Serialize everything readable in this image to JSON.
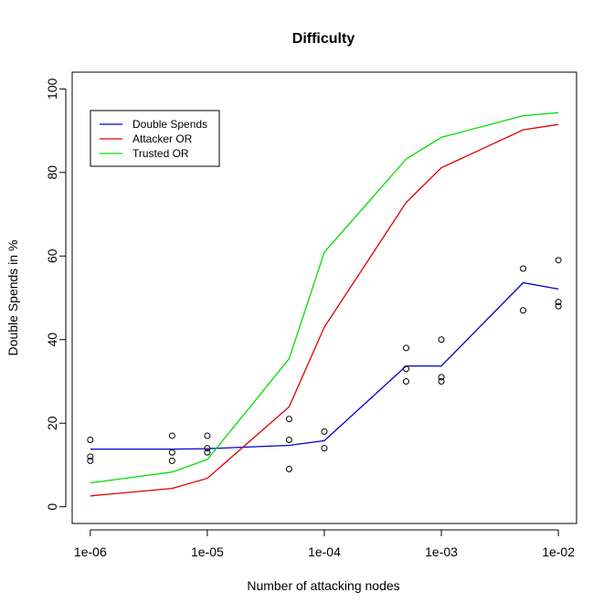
{
  "chart_data": {
    "type": "line",
    "title": "Difficulty",
    "xlabel": "Number of attacking nodes",
    "ylabel": "Double Spends in %",
    "x_scale": "log10",
    "x_ticks": [
      1e-06,
      1e-05,
      0.0001,
      0.001,
      0.01
    ],
    "x_tick_labels": [
      "1e-06",
      "1e-05",
      "1e-04",
      "1e-03",
      "1e-02"
    ],
    "y_ticks": [
      0,
      20,
      40,
      60,
      80,
      100
    ],
    "y_tick_labels": [
      "0",
      "20",
      "40",
      "60",
      "80",
      "100"
    ],
    "xlim": [
      7e-07,
      0.0143
    ],
    "ylim": [
      -4,
      104
    ],
    "grid": false,
    "legend_position": "top-left",
    "series": [
      {
        "name": "Double Spends",
        "color": "#0000cc",
        "x": [
          1e-06,
          5e-06,
          1e-05,
          5e-05,
          0.0001,
          0.0005,
          0.001,
          0.005,
          0.01
        ],
        "y": [
          13.8,
          13.8,
          13.9,
          14.7,
          15.8,
          33.7,
          33.7,
          53.6,
          52.1
        ]
      },
      {
        "name": "Attacker OR",
        "color": "#dd0000",
        "x": [
          1e-06,
          5e-06,
          1e-05,
          5e-05,
          0.0001,
          0.0005,
          0.001,
          0.005,
          0.01
        ],
        "y": [
          2.6,
          4.4,
          6.8,
          23.9,
          43.0,
          72.8,
          81.1,
          90.2,
          91.5
        ]
      },
      {
        "name": "Trusted OR",
        "color": "#00dd00",
        "x": [
          1e-06,
          5e-06,
          1e-05,
          5e-05,
          0.0001,
          0.0005,
          0.001,
          0.005,
          0.01
        ],
        "y": [
          5.7,
          8.3,
          11.3,
          35.4,
          60.9,
          83.2,
          88.4,
          93.6,
          94.3
        ]
      }
    ],
    "points": {
      "color": "#000000",
      "x": [
        1e-06,
        1e-06,
        1e-06,
        5e-06,
        5e-06,
        5e-06,
        1e-05,
        1e-05,
        1e-05,
        5e-05,
        5e-05,
        5e-05,
        0.0001,
        0.0001,
        0.0005,
        0.0005,
        0.0005,
        0.001,
        0.001,
        0.001,
        0.005,
        0.005,
        0.01,
        0.01,
        0.01
      ],
      "y": [
        16,
        12,
        11,
        17,
        13,
        11,
        17,
        14,
        13,
        21,
        16,
        9,
        18,
        14,
        38,
        33,
        30,
        40,
        31,
        30,
        57,
        47,
        59,
        49,
        48
      ]
    }
  }
}
